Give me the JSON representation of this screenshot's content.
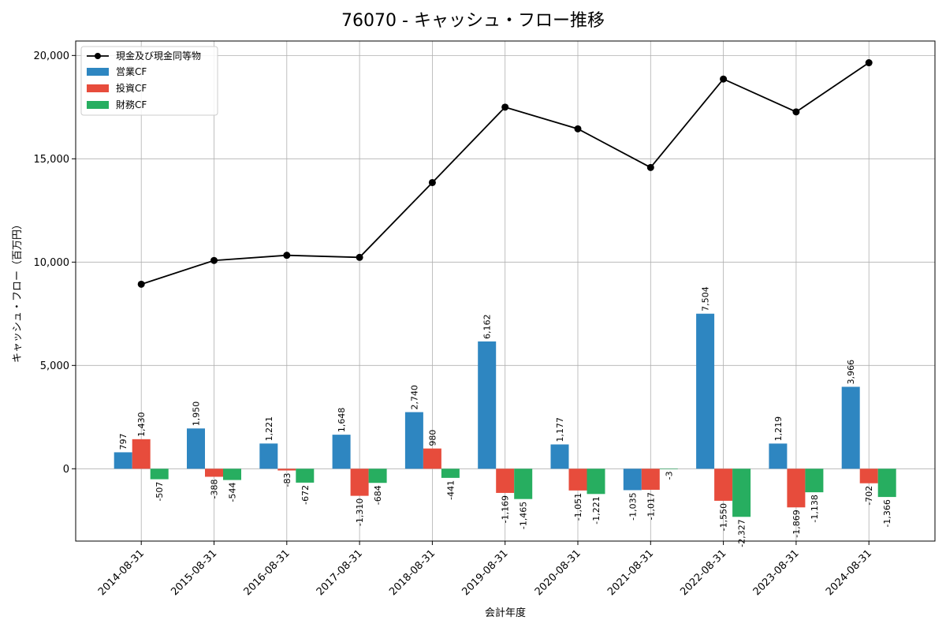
{
  "chart_data": {
    "type": "bar",
    "title": "76070 - キャッシュ・フロー推移",
    "xlabel": "会計年度",
    "ylabel": "キャッシュ・フロー（百万円）",
    "ylim": [
      -3500,
      20700
    ],
    "yticks": [
      0,
      5000,
      10000,
      15000,
      20000
    ],
    "ytick_labels": [
      "0",
      "5,000",
      "10,000",
      "15,000",
      "20,000"
    ],
    "grid": true,
    "legend_position": "top-left",
    "categories": [
      "2014-08-31",
      "2015-08-31",
      "2016-08-31",
      "2017-08-31",
      "2018-08-31",
      "2019-08-31",
      "2020-08-31",
      "2021-08-31",
      "2022-08-31",
      "2023-08-31",
      "2024-08-31"
    ],
    "series": [
      {
        "name": "営業CF",
        "kind": "bar",
        "color": "#2e86c1",
        "values": [
          797,
          1950,
          1221,
          1648,
          2740,
          6162,
          1177,
          -1035,
          7504,
          1219,
          3966
        ],
        "labels": [
          "797",
          "1,950",
          "1,221",
          "1,648",
          "2,740",
          "6,162",
          "1,177",
          "-1,035",
          "7,504",
          "1,219",
          "3,966"
        ]
      },
      {
        "name": "投資CF",
        "kind": "bar",
        "color": "#e74c3c",
        "values": [
          1430,
          -388,
          -83,
          -1310,
          980,
          -1169,
          -1051,
          -1017,
          -1550,
          -1869,
          -702
        ],
        "labels": [
          "1,430",
          "-388",
          "-83",
          "-1,310",
          "980",
          "-1,169",
          "-1,051",
          "-1,017",
          "-1,550",
          "-1,869",
          "-702"
        ]
      },
      {
        "name": "財務CF",
        "kind": "bar",
        "color": "#27ae60",
        "values": [
          -507,
          -544,
          -672,
          -684,
          -441,
          -1465,
          -1221,
          -3,
          -2327,
          -1138,
          -1366
        ],
        "labels": [
          "-507",
          "-544",
          "-672",
          "-684",
          "-441",
          "-1,465",
          "-1,221",
          "-3",
          "-2,327",
          "-1,138",
          "-1,366"
        ]
      },
      {
        "name": "現金及び現金同等物",
        "kind": "line",
        "color": "#000000",
        "values": [
          8930,
          10080,
          10330,
          10230,
          13850,
          17500,
          16450,
          14580,
          18860,
          17270,
          19650
        ]
      }
    ]
  }
}
